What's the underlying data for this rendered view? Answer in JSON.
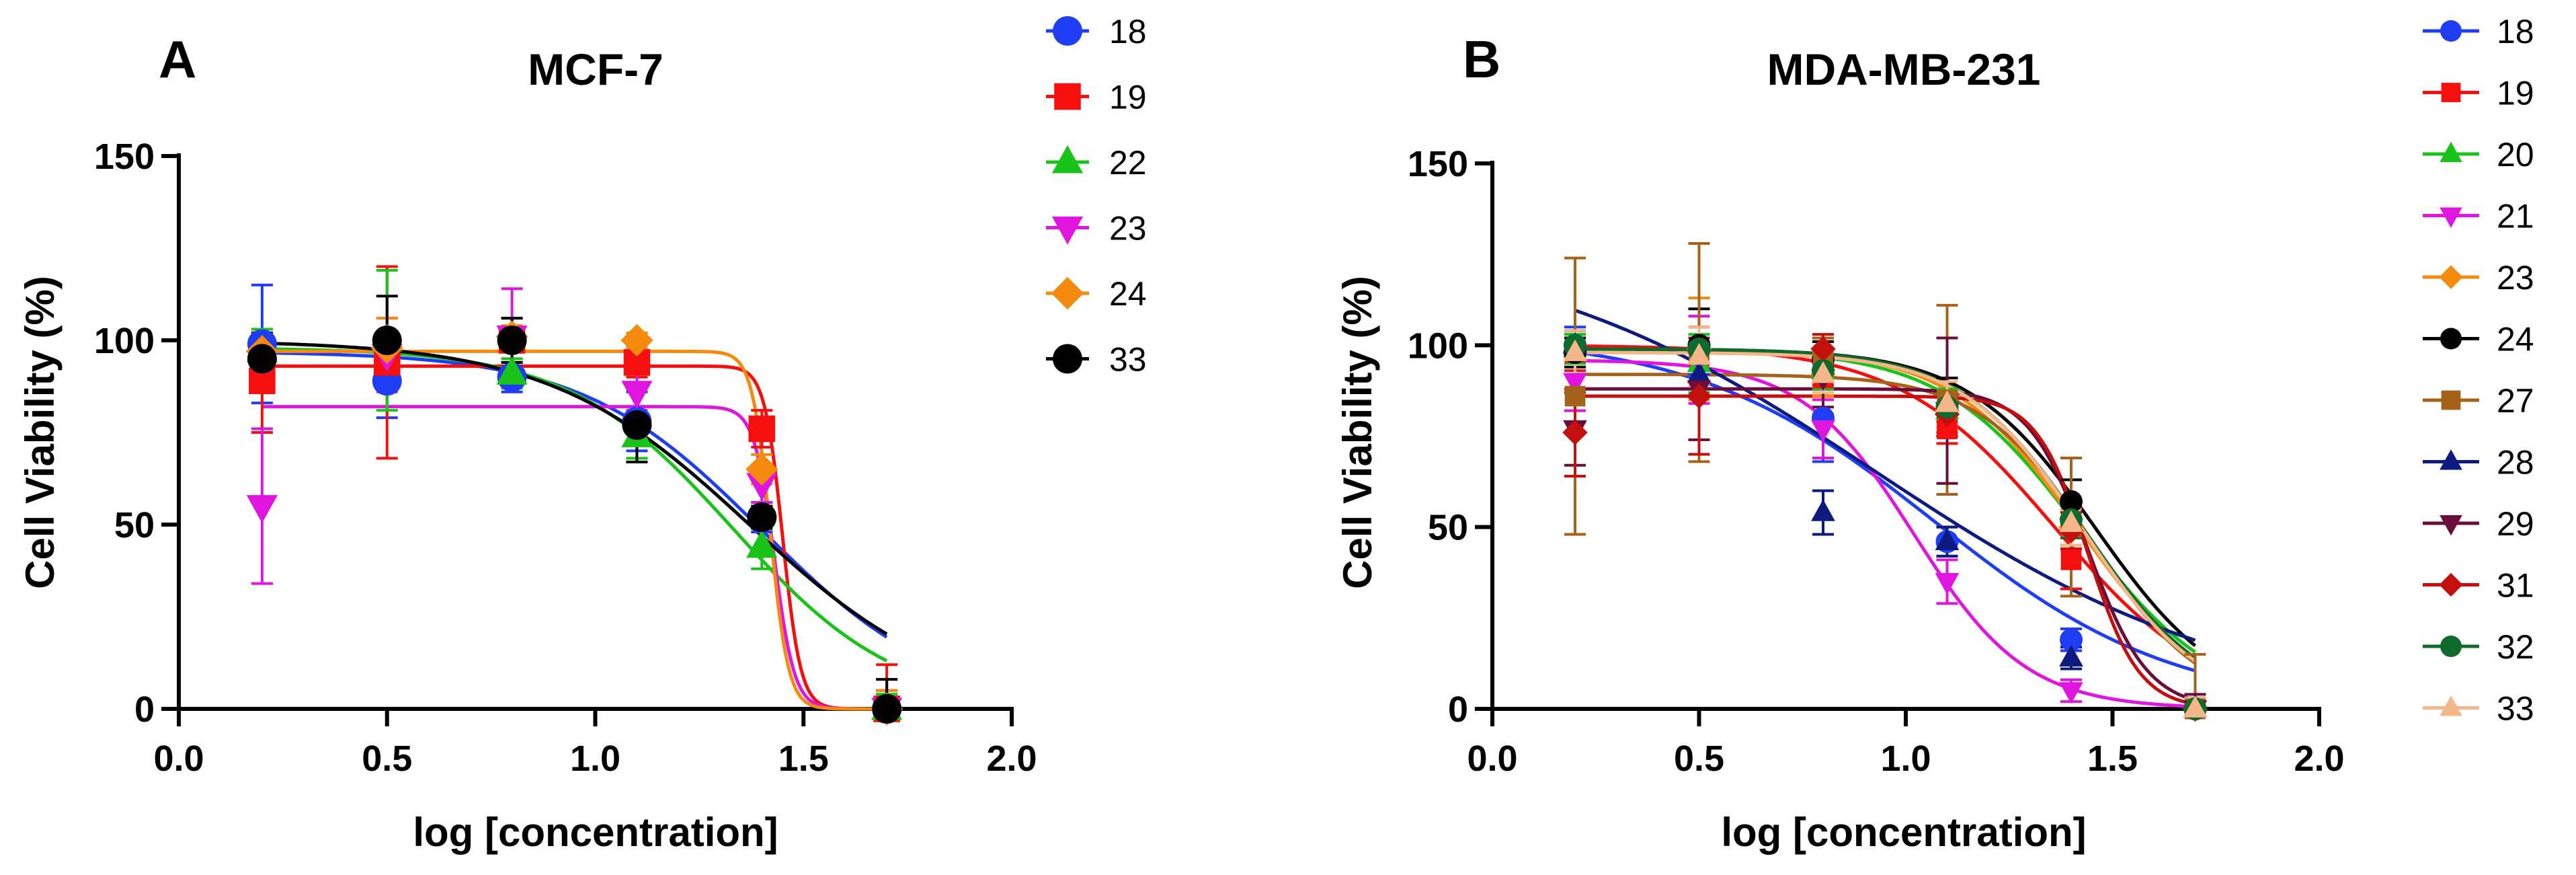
{
  "figure": {
    "panel_a_letter": "A",
    "panel_b_letter": "B"
  },
  "chart_data": [
    {
      "type": "line",
      "title": "MCF-7",
      "xlabel": "log [concentration]",
      "ylabel": "Cell Viability (%)",
      "xlim": [
        0,
        2
      ],
      "ylim": [
        0,
        150
      ],
      "xticks": [
        "0.0",
        "0.5",
        "1.0",
        "1.5",
        "2.0"
      ],
      "yticks": [
        "0",
        "50",
        "100",
        "150"
      ],
      "legend_position": "right",
      "series": [
        {
          "name": "18",
          "color": "#1f3df5",
          "marker": "circle",
          "x": [
            0.2,
            0.5,
            0.8,
            1.1,
            1.4,
            1.7
          ],
          "y": [
            99,
            89,
            90,
            78,
            52,
            0
          ],
          "err": [
            16,
            10,
            4,
            8,
            4,
            5
          ],
          "fit": {
            "top": 97,
            "bottom": 0,
            "logec50": 1.4,
            "hill": -2.0
          }
        },
        {
          "name": "19",
          "color": "#f50f0f",
          "marker": "square",
          "x": [
            0.2,
            0.5,
            0.8,
            1.1,
            1.4,
            1.7
          ],
          "y": [
            89,
            94,
            100,
            94,
            76,
            0
          ],
          "err": [
            14,
            26,
            6,
            4,
            5,
            12
          ],
          "fit": {
            "top": 93,
            "bottom": 0,
            "logec50": 1.45,
            "hill": -20
          }
        },
        {
          "name": "22",
          "color": "#1ac31a",
          "marker": "triangle-up",
          "x": [
            0.2,
            0.5,
            0.8,
            1.1,
            1.4,
            1.7
          ],
          "y": [
            97,
            100,
            91,
            74,
            44,
            0
          ],
          "err": [
            6,
            19,
            4,
            6,
            6,
            4
          ],
          "fit": {
            "top": 98,
            "bottom": 0,
            "logec50": 1.33,
            "hill": -2.2
          }
        },
        {
          "name": "23",
          "color": "#e016e0",
          "marker": "triangle-down",
          "x": [
            0.2,
            0.5,
            0.8,
            1.1,
            1.4,
            1.7
          ],
          "y": [
            55,
            96,
            101,
            86,
            61,
            0
          ],
          "err": [
            21,
            10,
            13,
            5,
            5,
            5
          ],
          "fit": {
            "top": 82,
            "bottom": 0,
            "logec50": 1.43,
            "hill": -18
          }
        },
        {
          "name": "24",
          "color": "#f58a0f",
          "marker": "diamond",
          "x": [
            0.2,
            0.5,
            0.8,
            1.1,
            1.4,
            1.7
          ],
          "y": [
            97,
            98,
            101,
            100,
            65,
            0
          ],
          "err": [
            4,
            8,
            3,
            2,
            4,
            5
          ],
          "fit": {
            "top": 97,
            "bottom": 0,
            "logec50": 1.42,
            "hill": -20
          }
        },
        {
          "name": "33",
          "color": "#000000",
          "marker": "circle",
          "x": [
            0.2,
            0.5,
            0.8,
            1.1,
            1.4,
            1.7
          ],
          "y": [
            95,
            100,
            100,
            77,
            52,
            0
          ],
          "err": [
            7,
            12,
            6,
            10,
            3,
            8
          ],
          "fit": {
            "top": 100,
            "bottom": 0,
            "logec50": 1.37,
            "hill": -1.8
          }
        }
      ]
    },
    {
      "type": "line",
      "title": "MDA-MB-231",
      "xlabel": "log [concentration]",
      "ylabel": "Cell Viability (%)",
      "xlim": [
        0,
        2
      ],
      "ylim": [
        0,
        150
      ],
      "xticks": [
        "0.0",
        "0.5",
        "1.0",
        "1.5",
        "2.0"
      ],
      "yticks": [
        "0",
        "50",
        "100",
        "150"
      ],
      "legend_position": "right",
      "series": [
        {
          "name": "18",
          "color": "#1f3df5",
          "marker": "circle",
          "x": [
            0.2,
            0.5,
            0.8,
            1.1,
            1.4,
            1.7
          ],
          "y": [
            100,
            100,
            80,
            46,
            19,
            0
          ],
          "err": [
            5,
            8,
            12,
            4,
            3,
            3
          ],
          "fit": {
            "top": 103,
            "bottom": 0,
            "logec50": 1.07,
            "hill": -1.5
          }
        },
        {
          "name": "19",
          "color": "#f50f0f",
          "marker": "square",
          "x": [
            0.2,
            0.5,
            0.8,
            1.1,
            1.4,
            1.7
          ],
          "y": [
            98,
            97,
            91,
            77,
            41,
            0
          ],
          "err": [
            5,
            8,
            10,
            4,
            8,
            3
          ],
          "fit": {
            "top": 100,
            "bottom": 0,
            "logec50": 1.36,
            "hill": -2.3
          }
        },
        {
          "name": "20",
          "color": "#1ac31a",
          "marker": "triangle-up",
          "x": [
            0.2,
            0.5,
            0.8,
            1.1,
            1.4,
            1.7
          ],
          "y": [
            99,
            95,
            93,
            82,
            51,
            0
          ],
          "err": [
            4,
            8,
            5,
            6,
            6,
            3
          ],
          "fit": {
            "top": 99,
            "bottom": 0,
            "logec50": 1.42,
            "hill": -2.6
          }
        },
        {
          "name": "21",
          "color": "#e016e0",
          "marker": "triangle-down",
          "x": [
            0.2,
            0.5,
            0.8,
            1.1,
            1.4,
            1.7
          ],
          "y": [
            90,
            96,
            77,
            35,
            5,
            0
          ],
          "err": [
            8,
            12,
            8,
            6,
            3,
            2
          ],
          "fit": {
            "top": 96,
            "bottom": 0,
            "logec50": 1.02,
            "hill": -3.2
          }
        },
        {
          "name": "23",
          "color": "#f58a0f",
          "marker": "diamond",
          "x": [
            0.2,
            0.5,
            0.8,
            1.1,
            1.4,
            1.7
          ],
          "y": [
            98,
            99,
            92,
            82,
            50,
            0
          ],
          "err": [
            6,
            14,
            6,
            5,
            5,
            3
          ],
          "fit": {
            "top": 99,
            "bottom": 0,
            "logec50": 1.42,
            "hill": -2.8
          }
        },
        {
          "name": "24",
          "color": "#000000",
          "marker": "circle",
          "x": [
            0.2,
            0.5,
            0.8,
            1.1,
            1.4,
            1.7
          ],
          "y": [
            98,
            100,
            96,
            83,
            57,
            0
          ],
          "err": [
            4,
            10,
            5,
            8,
            6,
            3
          ],
          "fit": {
            "top": 99,
            "bottom": 0,
            "logec50": 1.46,
            "hill": -2.8
          }
        },
        {
          "name": "27",
          "color": "#a6611a",
          "marker": "square",
          "x": [
            0.2,
            0.5,
            0.8,
            1.1,
            1.4,
            1.7
          ],
          "y": [
            86,
            98,
            96,
            85,
            50,
            0
          ],
          "err": [
            38,
            30,
            6,
            26,
            19,
            15
          ],
          "fit": {
            "top": 92,
            "bottom": 0,
            "logec50": 1.45,
            "hill": -3.2
          }
        },
        {
          "name": "28",
          "color": "#0d1a80",
          "marker": "triangle-up",
          "x": [
            0.2,
            0.5,
            0.8,
            1.1,
            1.4,
            1.7
          ],
          "y": [
            100,
            92,
            54,
            46,
            14,
            0
          ],
          "err": [
            4,
            6,
            6,
            4,
            3,
            2
          ],
          "fit": {
            "top": 130,
            "bottom": 0,
            "logec50": 0.93,
            "hill": -1.0
          }
        },
        {
          "name": "29",
          "color": "#6a0d3a",
          "marker": "triangle-down",
          "x": [
            0.2,
            0.5,
            0.8,
            1.1,
            1.4,
            1.7
          ],
          "y": [
            77,
            88,
            91,
            82,
            50,
            0
          ],
          "err": [
            10,
            14,
            8,
            20,
            6,
            4
          ],
          "fit": {
            "top": 88,
            "bottom": 0,
            "logec50": 1.44,
            "hill": -6.0
          }
        },
        {
          "name": "31",
          "color": "#c40f0f",
          "marker": "diamond",
          "x": [
            0.2,
            0.5,
            0.8,
            1.1,
            1.4,
            1.7
          ],
          "y": [
            76,
            86,
            99,
            81,
            49,
            0
          ],
          "err": [
            12,
            16,
            4,
            5,
            5,
            3
          ],
          "fit": {
            "top": 86,
            "bottom": 0,
            "logec50": 1.44,
            "hill": -7.0
          }
        },
        {
          "name": "32",
          "color": "#0f6b2d",
          "marker": "circle",
          "x": [
            0.2,
            0.5,
            0.8,
            1.1,
            1.4,
            1.7
          ],
          "y": [
            100,
            99,
            93,
            83,
            52,
            0
          ],
          "err": [
            4,
            6,
            4,
            4,
            5,
            3
          ],
          "fit": {
            "top": 99,
            "bottom": 0,
            "logec50": 1.43,
            "hill": -2.9
          }
        },
        {
          "name": "33",
          "color": "#f5b78a",
          "marker": "triangle-up",
          "x": [
            0.2,
            0.5,
            0.8,
            1.1,
            1.4,
            1.7
          ],
          "y": [
            98,
            97,
            92,
            84,
            51,
            0
          ],
          "err": [
            6,
            8,
            5,
            6,
            6,
            3
          ],
          "fit": {
            "top": 98,
            "bottom": 0,
            "logec50": 1.43,
            "hill": -3.0
          }
        }
      ]
    }
  ]
}
